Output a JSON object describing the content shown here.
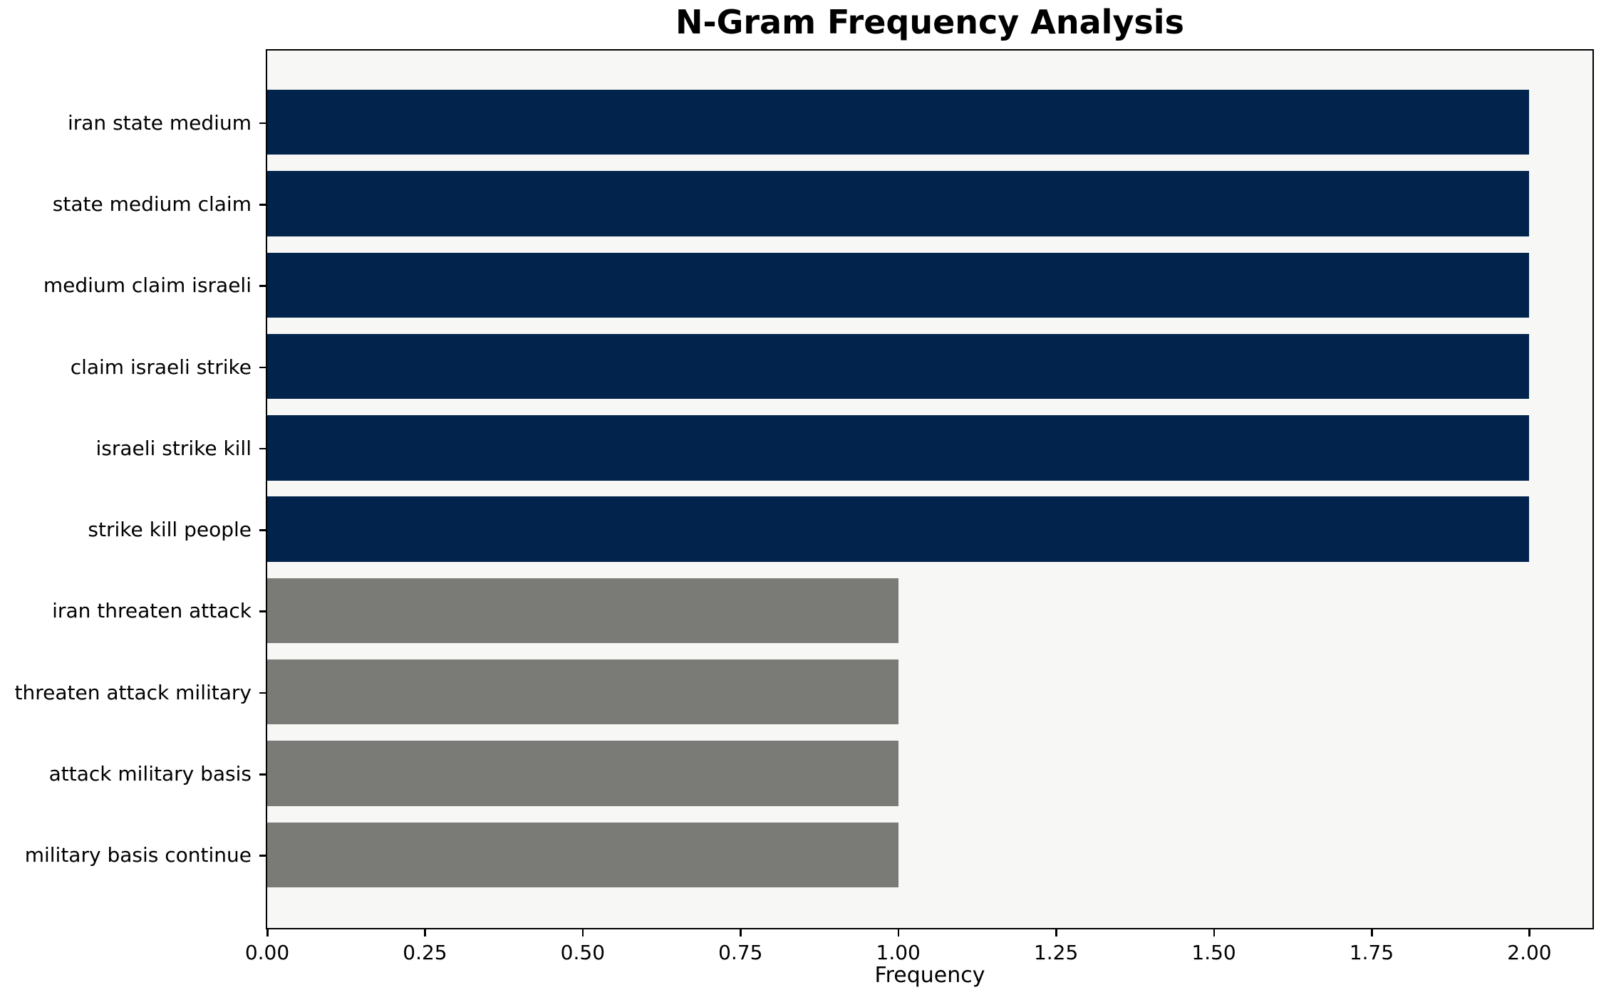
{
  "chart_data": {
    "type": "bar",
    "orientation": "horizontal",
    "title": "N-Gram Frequency Analysis",
    "xlabel": "Frequency",
    "ylabel": "",
    "categories": [
      "iran state medium",
      "state medium claim",
      "medium claim israeli",
      "claim israeli strike",
      "israeli strike kill",
      "strike kill people",
      "iran threaten attack",
      "threaten attack military",
      "attack military basis",
      "military basis continue"
    ],
    "values": [
      2,
      2,
      2,
      2,
      2,
      2,
      1,
      1,
      1,
      1
    ],
    "bar_colors": [
      "#02234c",
      "#02234c",
      "#02234c",
      "#02234c",
      "#02234c",
      "#02234c",
      "#7a7a77",
      "#7a7a77",
      "#7a7a77",
      "#7a7a77"
    ],
    "xlim": [
      0,
      2.1
    ],
    "xticks": [
      0,
      0.25,
      0.5,
      0.75,
      1.0,
      1.25,
      1.5,
      1.75,
      2.0
    ],
    "xtick_labels": [
      "0.00",
      "0.25",
      "0.50",
      "0.75",
      "1.00",
      "1.25",
      "1.50",
      "1.75",
      "2.00"
    ],
    "grid": false,
    "legend": "none",
    "colors": {
      "bar_primary": "#02234c",
      "bar_secondary": "#7a7a77",
      "plot_background": "#f7f7f6",
      "figure_background": "#ffffff",
      "spine": "#000000",
      "text": "#000000"
    }
  }
}
